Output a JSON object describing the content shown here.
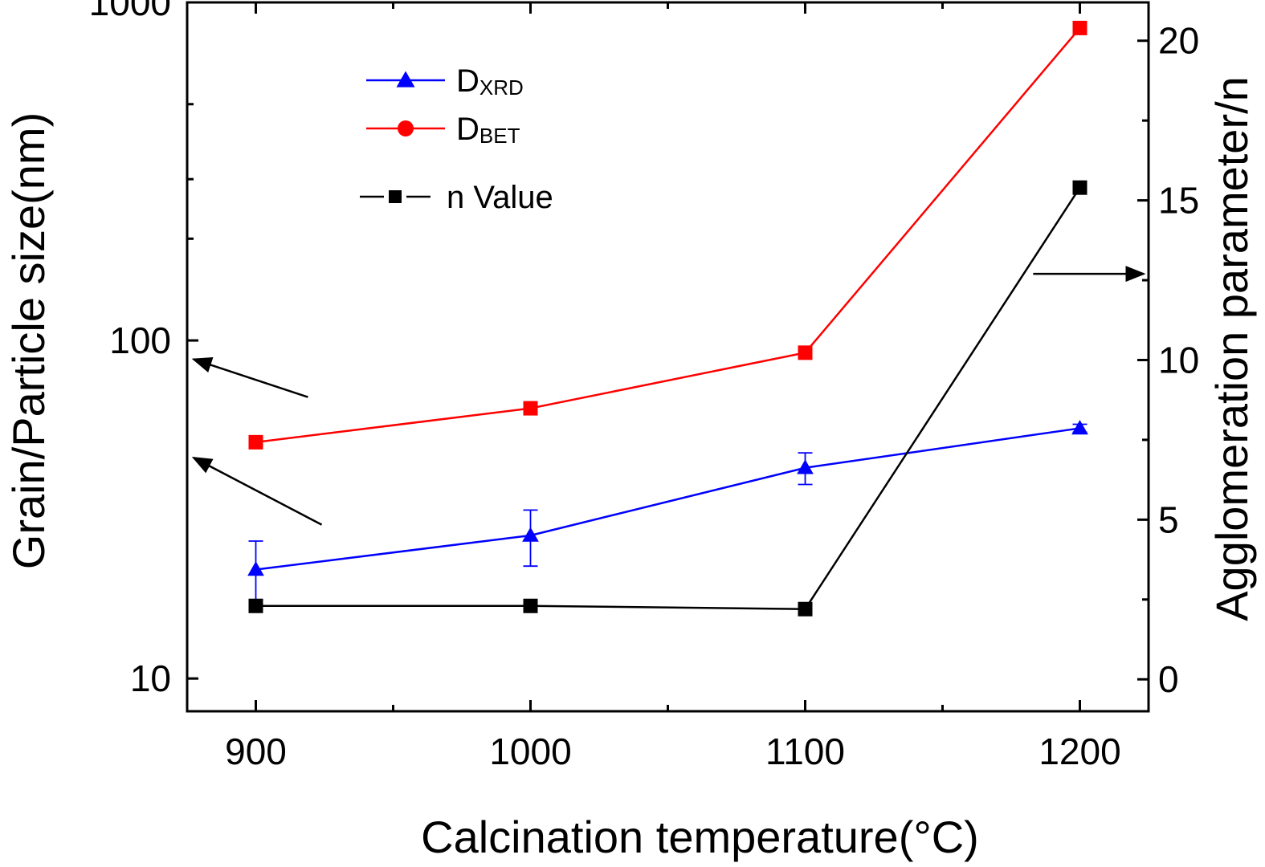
{
  "chart_data": {
    "type": "line",
    "xlabel": "Calcination temperature(°C)",
    "ylabel_left": "Grain/Particle size(nm)",
    "ylabel_right": "Agglomeration parameter/n",
    "xlim": [
      875,
      1225
    ],
    "ylim_left": [
      8,
      1000
    ],
    "yscale_left": "log",
    "ylim_right": [
      -1,
      21.2
    ],
    "x_ticks": [
      900,
      1000,
      1100,
      1200
    ],
    "x_tick_labels": [
      "900",
      "1000",
      "1100",
      "1200"
    ],
    "y_left_ticks": [
      10,
      100,
      1000
    ],
    "y_left_tick_labels": [
      "10",
      "100",
      "1000"
    ],
    "y_right_ticks": [
      0,
      5,
      10,
      15,
      20
    ],
    "y_right_tick_labels": [
      "0",
      "5",
      "10",
      "15",
      "20"
    ],
    "grid": false,
    "legend_position": "top-left",
    "series": [
      {
        "name": "DXRD",
        "legend_main": "D",
        "legend_sub": "XRD",
        "axis": "left",
        "color": "#0000ff",
        "marker": "triangle",
        "x": [
          900,
          1000,
          1100,
          1200
        ],
        "y": [
          21,
          26.5,
          42,
          55
        ],
        "error": [
          4.5,
          5,
          4.5,
          1.5
        ]
      },
      {
        "name": "DBET",
        "legend_main": "D",
        "legend_sub": "BET",
        "axis": "left",
        "color": "#ff0000",
        "marker": "square",
        "legend_marker": "circle",
        "x": [
          900,
          1000,
          1100,
          1200
        ],
        "y": [
          50,
          63,
          92,
          840
        ]
      },
      {
        "name": "n Value",
        "legend_main": "n Value",
        "legend_sub": "",
        "axis": "right",
        "color": "#000000",
        "marker": "square",
        "x": [
          900,
          1000,
          1100,
          1200
        ],
        "y": [
          2.3,
          2.3,
          2.2,
          15.4
        ]
      }
    ],
    "annotations": [
      {
        "type": "arrow",
        "points_to": "left-axis",
        "from": [
          919,
          68
        ],
        "to": [
          875,
          88
        ]
      },
      {
        "type": "arrow",
        "points_to": "left-axis",
        "from": [
          924,
          28.5
        ],
        "to": [
          875,
          45
        ]
      },
      {
        "type": "arrow",
        "points_to": "right-axis",
        "from": [
          1183,
          12.7
        ],
        "to": [
          1225,
          12.7
        ]
      }
    ]
  }
}
